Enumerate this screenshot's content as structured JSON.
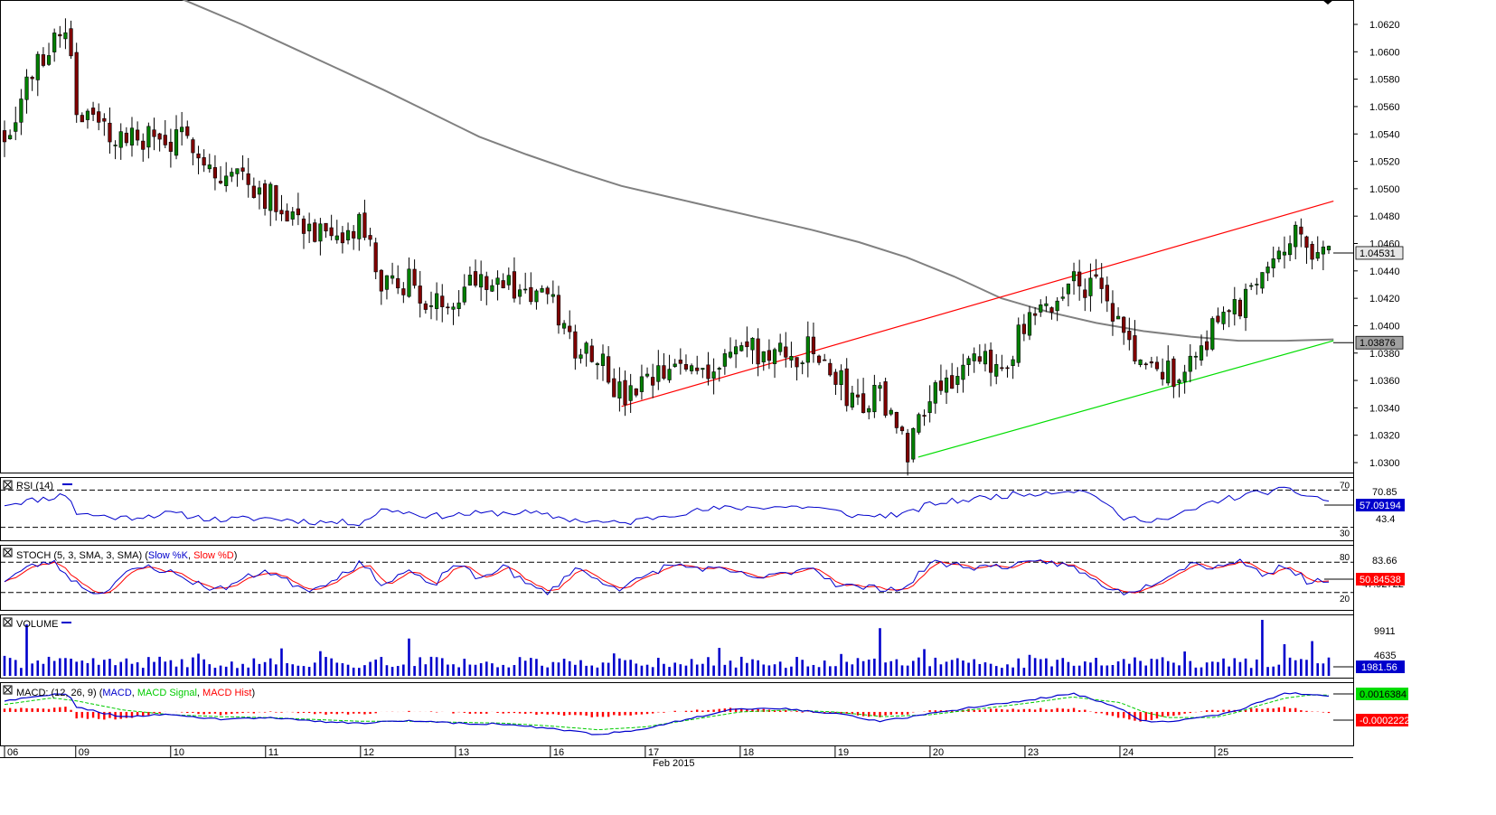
{
  "chart_data": [
    {
      "type": "candlestick",
      "panel": "price",
      "y_ticks": [
        "1.0620",
        "1.0600",
        "1.0580",
        "1.0560",
        "1.0540",
        "1.0520",
        "1.0500",
        "1.0480",
        "1.0460",
        "1.0440",
        "1.0420",
        "1.0400",
        "1.0380",
        "1.0360",
        "1.0340",
        "1.0320",
        "1.0300"
      ],
      "ylim": [
        1.0292,
        1.0632
      ],
      "last_price_label": "1.04531",
      "last_price": 1.04531,
      "ma_value_label": "1.03876",
      "ma_value": 1.03876,
      "moving_average": {
        "color": "#808080",
        "points": [
          [
            7,
            1.0642
          ],
          [
            10,
            1.062
          ],
          [
            12,
            1.0604
          ],
          [
            14,
            1.0588
          ],
          [
            16,
            1.0572
          ],
          [
            18,
            1.0555
          ],
          [
            20,
            1.0538
          ],
          [
            22,
            1.0525
          ],
          [
            24,
            1.0513
          ],
          [
            26,
            1.0502
          ],
          [
            28,
            1.0494
          ],
          [
            30,
            1.0486
          ],
          [
            32,
            1.0478
          ],
          [
            34,
            1.047
          ],
          [
            36,
            1.0461
          ],
          [
            38,
            1.045
          ],
          [
            40,
            1.0436
          ],
          [
            42,
            1.042
          ],
          [
            44,
            1.041
          ],
          [
            46,
            1.0402
          ],
          [
            48,
            1.0396
          ],
          [
            50,
            1.0392
          ],
          [
            52,
            1.0389
          ],
          [
            54,
            1.0389
          ],
          [
            56,
            1.039
          ]
        ]
      },
      "trendlines": [
        {
          "color": "#ff0000",
          "from": [
            26.0,
            1.0341
          ],
          "to": [
            56.0,
            1.0491
          ]
        },
        {
          "color": "#00dd00",
          "from": [
            38.5,
            1.0304
          ],
          "to": [
            56.0,
            1.0389
          ]
        }
      ],
      "candles": {
        "bull_color": "#008000",
        "bear_color": "#800000",
        "anchors": [
          [
            0,
            1.054
          ],
          [
            1,
            1.0578
          ],
          [
            2,
            1.061
          ],
          [
            2.7,
            1.062
          ],
          [
            3,
            1.056
          ],
          [
            4,
            1.0545
          ],
          [
            5,
            1.0535
          ],
          [
            6,
            1.0538
          ],
          [
            7,
            1.0532
          ],
          [
            8,
            1.0537
          ],
          [
            9,
            1.0505
          ],
          [
            10,
            1.0512
          ],
          [
            11,
            1.0496
          ],
          [
            12,
            1.0485
          ],
          [
            13,
            1.047
          ],
          [
            14,
            1.0455
          ],
          [
            15,
            1.0475
          ],
          [
            16,
            1.0425
          ],
          [
            17,
            1.0435
          ],
          [
            18,
            1.041
          ],
          [
            19,
            1.0425
          ],
          [
            20,
            1.044
          ],
          [
            21,
            1.043
          ],
          [
            22,
            1.0425
          ],
          [
            23,
            1.0417
          ],
          [
            24,
            1.0385
          ],
          [
            25,
            1.0382
          ],
          [
            26,
            1.0345
          ],
          [
            27,
            1.0355
          ],
          [
            28,
            1.0366
          ],
          [
            29,
            1.0372
          ],
          [
            30,
            1.037
          ],
          [
            31,
            1.0385
          ],
          [
            32,
            1.0378
          ],
          [
            33,
            1.0376
          ],
          [
            34,
            1.0382
          ],
          [
            35,
            1.0362
          ],
          [
            36,
            1.0342
          ],
          [
            37,
            1.035
          ],
          [
            38,
            1.0308
          ],
          [
            39,
            1.0355
          ],
          [
            40,
            1.0365
          ],
          [
            41,
            1.037
          ],
          [
            42,
            1.0372
          ],
          [
            43,
            1.0398
          ],
          [
            44,
            1.041
          ],
          [
            45,
            1.0435
          ],
          [
            46,
            1.0428
          ],
          [
            47,
            1.0398
          ],
          [
            48,
            1.0368
          ],
          [
            49,
            1.0365
          ],
          [
            50,
            1.037
          ],
          [
            51,
            1.0405
          ],
          [
            52,
            1.0412
          ],
          [
            53,
            1.0445
          ],
          [
            54,
            1.0465
          ],
          [
            55,
            1.046
          ],
          [
            55.8,
            1.0453
          ]
        ]
      },
      "x_labels": [
        {
          "label": "06",
          "day": 0
        },
        {
          "label": "09",
          "day": 3
        },
        {
          "label": "10",
          "day": 7
        },
        {
          "label": "11",
          "day": 11
        },
        {
          "label": "12",
          "day": 15
        },
        {
          "label": "13",
          "day": 19
        },
        {
          "label": "16",
          "day": 23
        },
        {
          "label": "17",
          "day": 27
        },
        {
          "label": "18",
          "day": 31
        },
        {
          "label": "19",
          "day": 35
        },
        {
          "label": "20",
          "day": 39
        },
        {
          "label": "23",
          "day": 43
        },
        {
          "label": "24",
          "day": 47
        },
        {
          "label": "25",
          "day": 51
        }
      ],
      "month_label": "Feb 2015"
    },
    {
      "type": "line",
      "panel": "rsi",
      "title": "RSI (14)",
      "levels": [
        "70",
        "30"
      ],
      "level_values": [
        70,
        30
      ],
      "ylim": [
        20,
        80
      ],
      "right_labels": [
        "70.85",
        "43.4"
      ],
      "value_label": "57.09194",
      "series": [
        {
          "name": "RSI",
          "color": "#0000cc",
          "anchors": [
            [
              0,
              55
            ],
            [
              2,
              62
            ],
            [
              2.7,
              66
            ],
            [
              3,
              45
            ],
            [
              5,
              40
            ],
            [
              7,
              45
            ],
            [
              9,
              38
            ],
            [
              11,
              40
            ],
            [
              13,
              36
            ],
            [
              15,
              35
            ],
            [
              16,
              50
            ],
            [
              18,
              42
            ],
            [
              20,
              45
            ],
            [
              22,
              46
            ],
            [
              24,
              38
            ],
            [
              26,
              34
            ],
            [
              28,
              44
            ],
            [
              30,
              50
            ],
            [
              32,
              52
            ],
            [
              34,
              52
            ],
            [
              36,
              42
            ],
            [
              38,
              44
            ],
            [
              39,
              55
            ],
            [
              42,
              64
            ],
            [
              44,
              68
            ],
            [
              45,
              70
            ],
            [
              46,
              65
            ],
            [
              47,
              40
            ],
            [
              49,
              38
            ],
            [
              51,
              58
            ],
            [
              53,
              68
            ],
            [
              54,
              70
            ],
            [
              55,
              64
            ],
            [
              56,
              57
            ]
          ]
        }
      ]
    },
    {
      "type": "line",
      "panel": "stoch",
      "title_parts": [
        "STOCH (5, 3, SMA, 3, SMA)",
        "(",
        "Slow %K",
        ",",
        "Slow %D",
        ")"
      ],
      "levels": [
        "80",
        "20"
      ],
      "level_values": [
        80,
        20
      ],
      "ylim": [
        0,
        100
      ],
      "right_labels": [
        "83.66",
        "47.92722"
      ],
      "value_label": "50.84538",
      "series": [
        {
          "name": "Slow %K",
          "color": "#0000cc"
        },
        {
          "name": "Slow %D",
          "color": "#ff0000"
        }
      ],
      "anchors": [
        [
          0,
          45
        ],
        [
          1,
          70
        ],
        [
          2,
          82
        ],
        [
          3,
          40
        ],
        [
          4,
          15
        ],
        [
          5,
          55
        ],
        [
          6,
          72
        ],
        [
          7,
          60
        ],
        [
          8,
          40
        ],
        [
          9,
          25
        ],
        [
          11,
          65
        ],
        [
          12,
          40
        ],
        [
          13,
          25
        ],
        [
          15,
          78
        ],
        [
          16,
          35
        ],
        [
          17,
          65
        ],
        [
          18,
          30
        ],
        [
          19,
          80
        ],
        [
          20,
          45
        ],
        [
          21,
          75
        ],
        [
          22,
          35
        ],
        [
          23,
          20
        ],
        [
          24,
          70
        ],
        [
          25,
          45
        ],
        [
          26,
          28
        ],
        [
          28,
          75
        ],
        [
          30,
          65
        ],
        [
          32,
          48
        ],
        [
          34,
          72
        ],
        [
          35,
          38
        ],
        [
          36,
          30
        ],
        [
          38,
          28
        ],
        [
          39,
          80
        ],
        [
          41,
          70
        ],
        [
          43,
          75
        ],
        [
          44,
          82
        ],
        [
          45,
          70
        ],
        [
          46,
          42
        ],
        [
          47,
          20
        ],
        [
          48,
          30
        ],
        [
          49,
          55
        ],
        [
          50,
          78
        ],
        [
          51,
          70
        ],
        [
          52,
          85
        ],
        [
          53,
          55
        ],
        [
          54,
          75
        ],
        [
          55,
          38
        ],
        [
          56,
          50
        ]
      ]
    },
    {
      "type": "bar",
      "panel": "volume",
      "title": "VOLUME",
      "right_labels": [
        "9911",
        "4635"
      ],
      "value_label": "1981.56",
      "ylim": [
        0,
        11500
      ],
      "color": "#0000cc",
      "spikes": [
        [
          1,
          9911
        ],
        [
          17,
          7200
        ],
        [
          37,
          9200
        ],
        [
          53,
          10800
        ],
        [
          54,
          6100
        ],
        [
          55,
          6700
        ]
      ]
    },
    {
      "type": "line",
      "panel": "macd",
      "title_parts": [
        "MACD: (12, 26, 9)",
        "(",
        "MACD",
        ",",
        "MACD Signal",
        ",",
        "MACD Hist",
        ")"
      ],
      "value_labels": [
        "0.0016384",
        "-0.0002222"
      ],
      "ylim": [
        -0.003,
        0.0026
      ],
      "series": [
        {
          "name": "MACD",
          "color": "#0000cc",
          "anchors": [
            [
              0,
              0.0012
            ],
            [
              2,
              0.0018
            ],
            [
              2.7,
              0.002
            ],
            [
              3,
              0.0006
            ],
            [
              5,
              -0.0006
            ],
            [
              7,
              -0.0002
            ],
            [
              9,
              -0.0008
            ],
            [
              11,
              -0.0006
            ],
            [
              13,
              -0.001
            ],
            [
              15,
              -0.0012
            ],
            [
              17,
              -0.0009
            ],
            [
              19,
              -0.0012
            ],
            [
              21,
              -0.0013
            ],
            [
              23,
              -0.0018
            ],
            [
              25,
              -0.0024
            ],
            [
              27,
              -0.0018
            ],
            [
              29,
              -0.0006
            ],
            [
              31,
              0.0004
            ],
            [
              33,
              0.0003
            ],
            [
              35,
              -0.0002
            ],
            [
              37,
              -0.001
            ],
            [
              39,
              -0.0002
            ],
            [
              41,
              0.0006
            ],
            [
              43,
              0.0012
            ],
            [
              45,
              0.002
            ],
            [
              47,
              0.0004
            ],
            [
              48,
              -0.001
            ],
            [
              49,
              -0.001
            ],
            [
              51,
              -0.0004
            ],
            [
              52,
              0.0002
            ],
            [
              53,
              0.0012
            ],
            [
              54,
              0.002
            ],
            [
              55,
              0.0019
            ],
            [
              56,
              0.0016
            ]
          ]
        },
        {
          "name": "MACD Signal",
          "color": "#00cc00",
          "anchors": [
            [
              0,
              0.0008
            ],
            [
              2,
              0.0015
            ],
            [
              3,
              0.0012
            ],
            [
              5,
              0.0002
            ],
            [
              7,
              -0.0003
            ],
            [
              9,
              -0.0005
            ],
            [
              11,
              -0.0006
            ],
            [
              13,
              -0.0008
            ],
            [
              15,
              -0.001
            ],
            [
              17,
              -0.001
            ],
            [
              19,
              -0.0011
            ],
            [
              21,
              -0.0012
            ],
            [
              23,
              -0.0015
            ],
            [
              25,
              -0.0019
            ],
            [
              27,
              -0.0016
            ],
            [
              29,
              -0.0008
            ],
            [
              31,
              0.0
            ],
            [
              33,
              0.0002
            ],
            [
              35,
              0.0
            ],
            [
              37,
              -0.0005
            ],
            [
              39,
              -0.0003
            ],
            [
              41,
              0.0003
            ],
            [
              43,
              0.0009
            ],
            [
              45,
              0.0016
            ],
            [
              47,
              0.001
            ],
            [
              48,
              0.0
            ],
            [
              49,
              -0.0006
            ],
            [
              51,
              -0.0006
            ],
            [
              52,
              0.0
            ],
            [
              53,
              0.0008
            ],
            [
              54,
              0.0015
            ],
            [
              55,
              0.0018
            ],
            [
              56,
              0.0018
            ]
          ]
        },
        {
          "name": "MACD Hist",
          "color": "#ff0000"
        }
      ]
    }
  ]
}
